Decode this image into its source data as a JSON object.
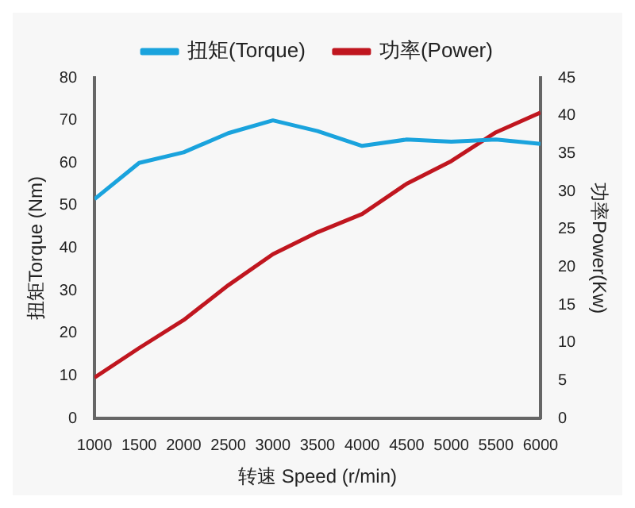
{
  "chart_data": {
    "type": "line",
    "xlabel": "转速 Speed (r/min)",
    "ylabel": "扭矩Torque (Nm)",
    "y2label": "功率Power(Kw)",
    "x": [
      1000,
      1500,
      2000,
      2500,
      3000,
      3500,
      4000,
      4500,
      5000,
      5500,
      6000
    ],
    "series": [
      {
        "name": "扭矩(Torque)",
        "color": "#1aa3dd",
        "values": [
          51.5,
          60,
          62.5,
          67,
          70,
          67.5,
          64,
          65.5,
          65,
          65.5,
          64.5
        ]
      },
      {
        "name": "功率(Power)",
        "color": "#c0161f",
        "axis": "y2",
        "values": [
          5.4,
          9.3,
          13,
          17.6,
          21.7,
          24.6,
          27,
          31,
          34,
          37.8,
          40.4
        ]
      }
    ],
    "xlim": [
      1000,
      6000
    ],
    "xticks": [
      1000,
      1500,
      2000,
      2500,
      3000,
      3500,
      4000,
      4500,
      5000,
      5500,
      6000
    ],
    "ylim": [
      0,
      80
    ],
    "yticks": [
      0,
      10,
      20,
      30,
      40,
      50,
      60,
      70,
      80
    ],
    "y2lim": [
      0,
      45
    ],
    "y2ticks": [
      0,
      5,
      10,
      15,
      20,
      25,
      30,
      35,
      40,
      45
    ],
    "grid": false,
    "legend": "top",
    "marker": "none",
    "line_style": "solid"
  }
}
